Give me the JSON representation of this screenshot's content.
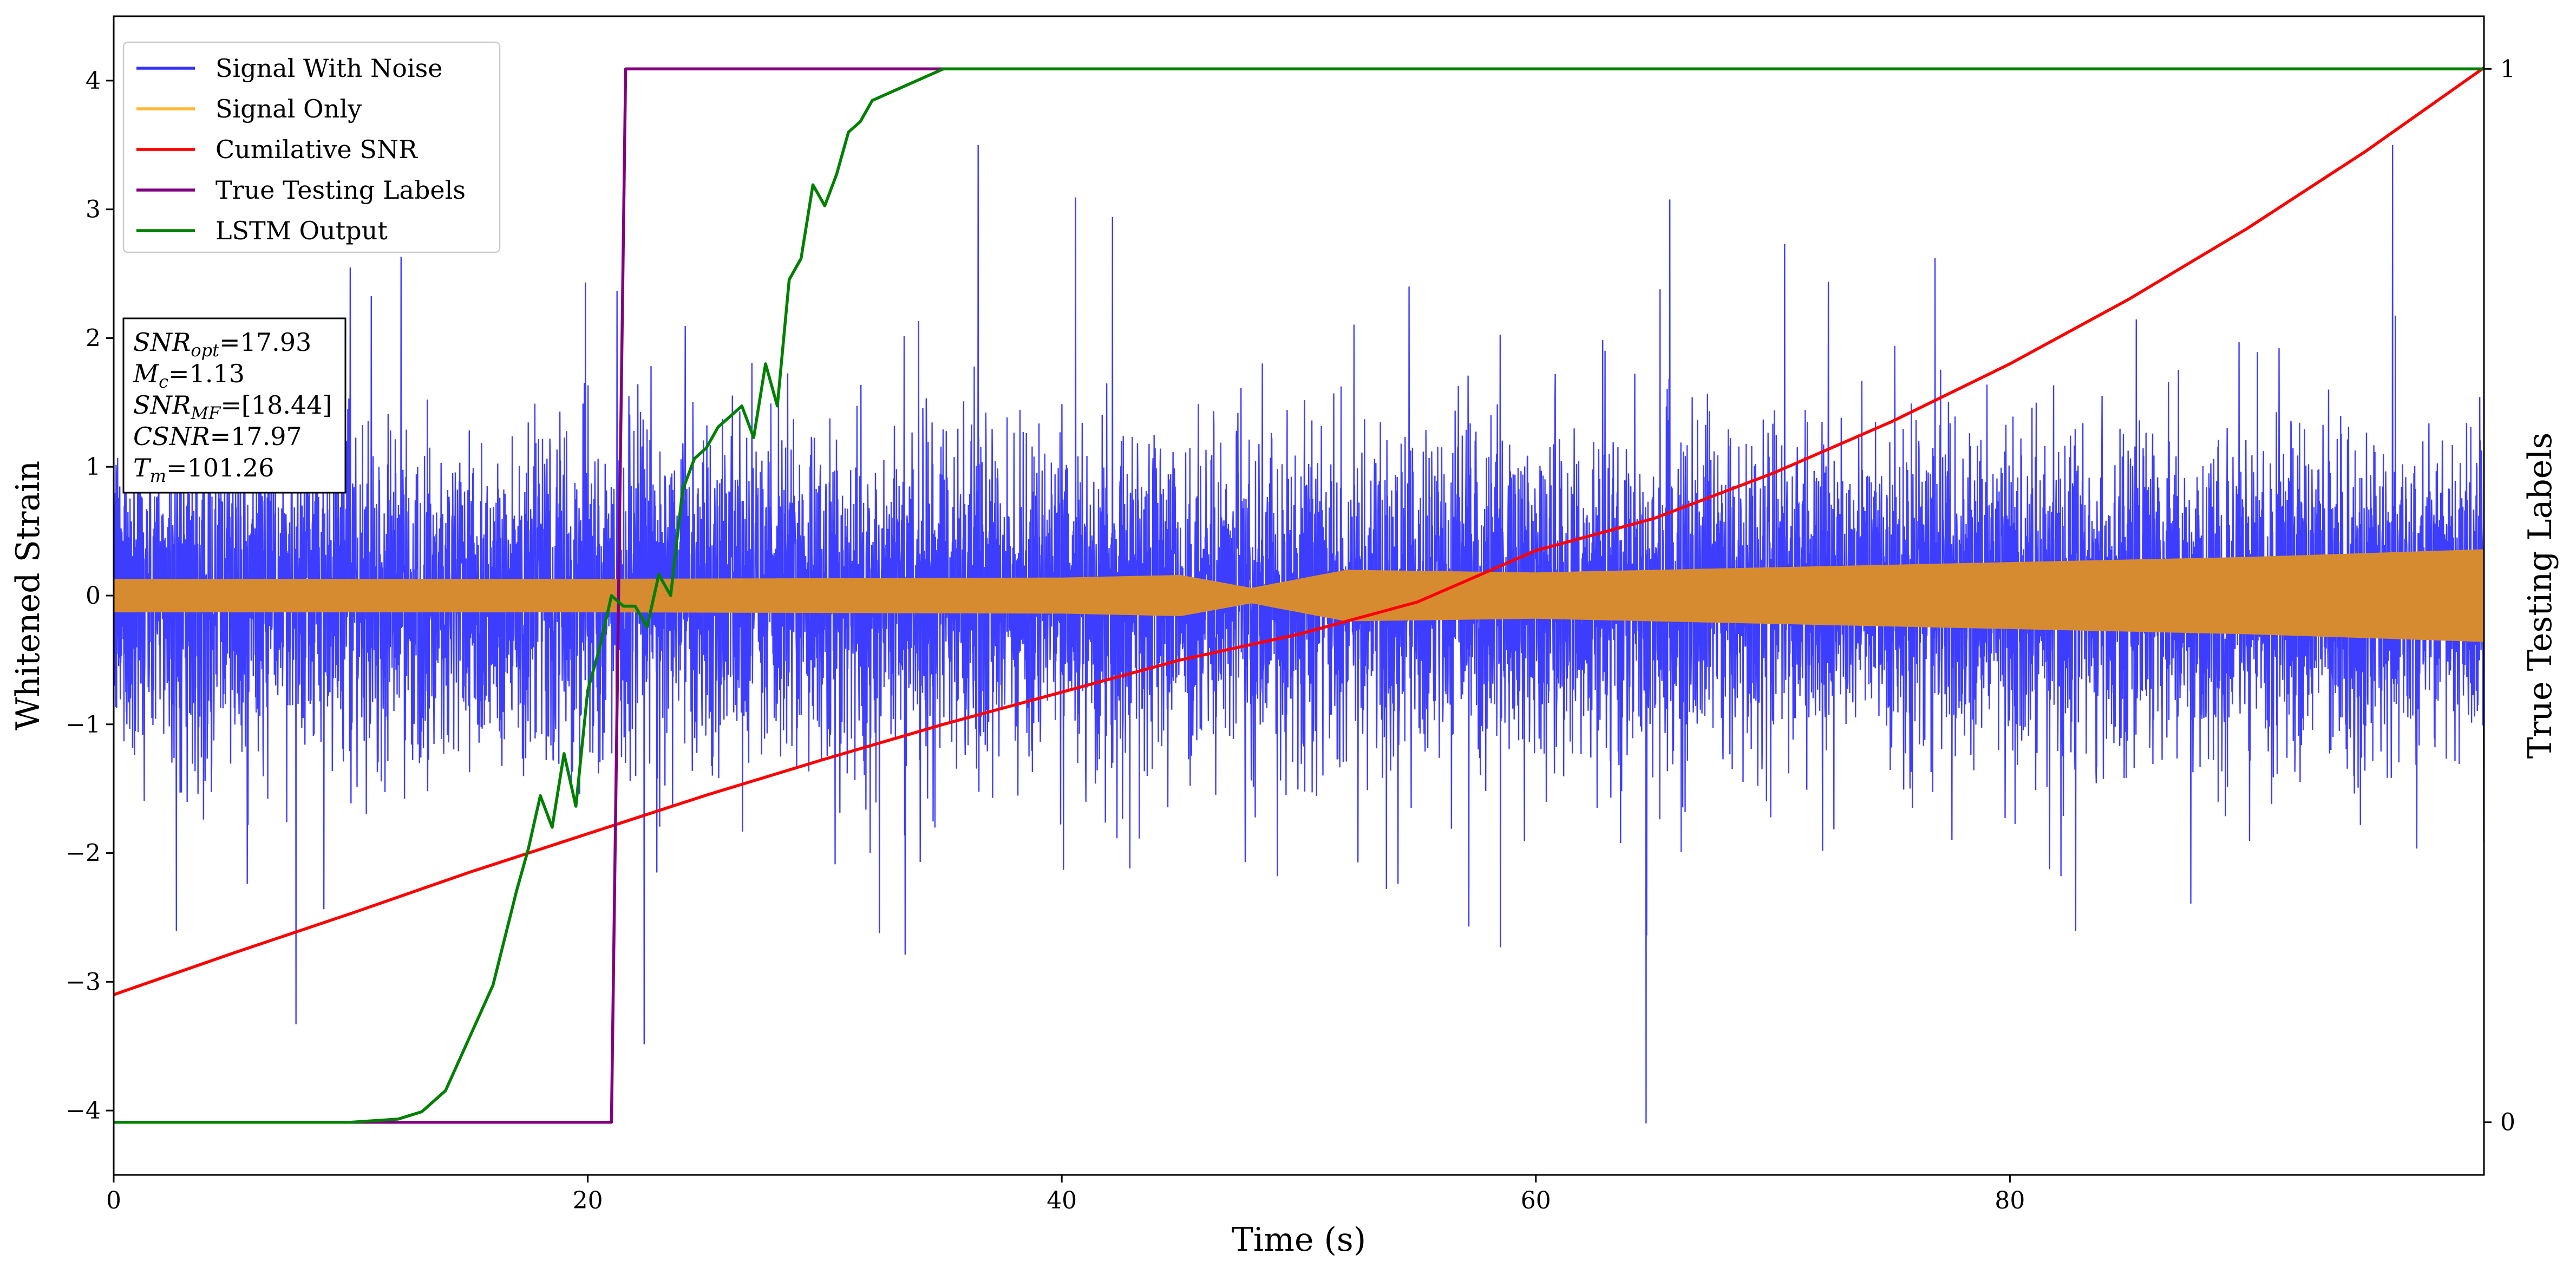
{
  "chart_data": {
    "type": "line",
    "title": "",
    "xlabel": "Time (s)",
    "ylabel": "Whitened Strain",
    "y2label": "True Testing Labels",
    "xlim": [
      0,
      100
    ],
    "ylim": [
      -4.5,
      4.5
    ],
    "y2lim": [
      -0.05,
      1.05
    ],
    "x_ticks": [
      0,
      20,
      40,
      60,
      80
    ],
    "y_ticks": [
      -4,
      -3,
      -2,
      -1,
      0,
      1,
      2,
      3,
      4
    ],
    "y2_ticks": [
      0,
      1
    ],
    "grid": false,
    "legend_position": "top-left",
    "annotation": {
      "lines": [
        {
          "name": "SNR",
          "sub": "opt",
          "value": "=17.93"
        },
        {
          "name": "M",
          "sub": "c",
          "value": "=1.13"
        },
        {
          "name": "SNR",
          "sub": "MF",
          "value": "=[18.44]"
        },
        {
          "name": "CSNR",
          "sub": "",
          "value": "=17.97"
        },
        {
          "name": "T",
          "sub": "m",
          "value": "=101.26"
        }
      ]
    },
    "series": [
      {
        "name": "Signal With Noise",
        "color": "#3333ff",
        "axis": "left",
        "noise_std": 0.62,
        "typical_range": [
          -1.3,
          1.3
        ],
        "extreme_range": [
          -4.1,
          3.5
        ]
      },
      {
        "name": "Signal Only",
        "color": "#ffb833",
        "fill_color": "#d68b30",
        "axis": "left",
        "envelope": {
          "x": [
            0,
            20,
            40,
            45,
            48,
            52,
            60,
            70,
            80,
            90,
            100
          ],
          "amplitude": [
            0.13,
            0.13,
            0.14,
            0.16,
            0.06,
            0.2,
            0.18,
            0.22,
            0.26,
            0.3,
            0.36
          ]
        }
      },
      {
        "name": "Cumilative SNR",
        "color": "#ff0000",
        "axis": "left",
        "x": [
          0,
          5,
          10,
          15,
          20,
          25,
          30,
          35,
          40,
          45,
          50,
          55,
          60,
          65,
          70,
          75,
          80,
          85,
          90,
          95,
          100
        ],
        "y": [
          -3.1,
          -2.78,
          -2.47,
          -2.15,
          -1.85,
          -1.55,
          -1.27,
          -1.0,
          -0.75,
          -0.5,
          -0.3,
          -0.05,
          0.35,
          0.6,
          0.95,
          1.35,
          1.8,
          2.3,
          2.85,
          3.45,
          4.1
        ]
      },
      {
        "name": "True Testing Labels",
        "color": "#800080",
        "axis": "right",
        "x": [
          0,
          21,
          21.6,
          100
        ],
        "y": [
          0,
          0,
          1,
          1
        ]
      },
      {
        "name": "LSTM Output",
        "color": "#008000",
        "axis": "right",
        "x": [
          0,
          10,
          12,
          13,
          14,
          15,
          16,
          17,
          17.5,
          18,
          18.5,
          19,
          19.5,
          20,
          20.5,
          21,
          21.5,
          22,
          22.5,
          23,
          23.5,
          24,
          24.5,
          25,
          25.5,
          26,
          26.5,
          27,
          27.5,
          28,
          28.5,
          29,
          29.5,
          30,
          30.5,
          31,
          31.5,
          32,
          33,
          34,
          35,
          37,
          40,
          45,
          50,
          55,
          60,
          62,
          100
        ],
        "y": [
          0,
          0,
          0.003,
          0.01,
          0.03,
          0.08,
          0.13,
          0.22,
          0.26,
          0.31,
          0.28,
          0.35,
          0.3,
          0.41,
          0.45,
          0.5,
          0.49,
          0.49,
          0.47,
          0.52,
          0.5,
          0.6,
          0.63,
          0.64,
          0.66,
          0.67,
          0.68,
          0.65,
          0.72,
          0.68,
          0.8,
          0.82,
          0.89,
          0.87,
          0.9,
          0.94,
          0.95,
          0.97,
          0.98,
          0.99,
          1.0,
          1.0,
          1.0,
          1.0,
          1.0,
          1.0,
          1.0,
          1.0,
          1.0
        ]
      }
    ]
  }
}
